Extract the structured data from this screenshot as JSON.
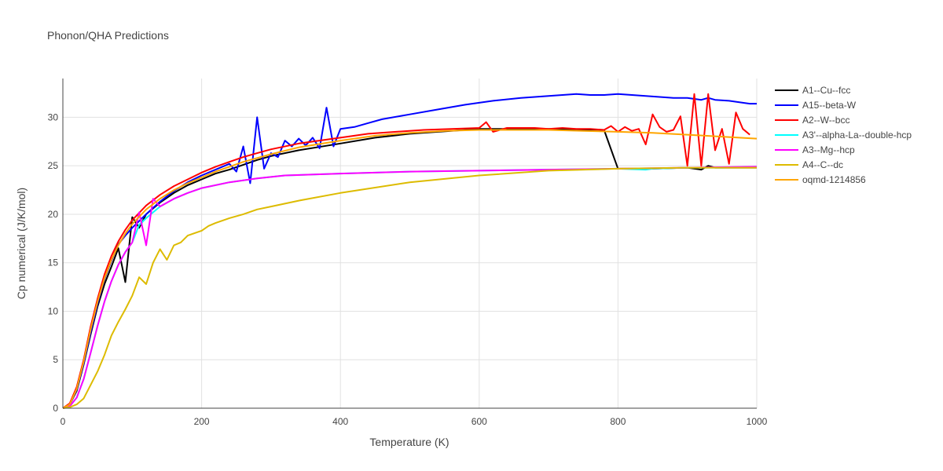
{
  "chart_data": {
    "type": "line",
    "title": "Phonon/QHA Predictions",
    "xlabel": "Temperature (K)",
    "ylabel": "Cp numerical (J/K/mol)",
    "xlim": [
      0,
      1000
    ],
    "ylim": [
      0,
      34
    ],
    "xticks": [
      0,
      200,
      400,
      600,
      800,
      1000
    ],
    "yticks": [
      0,
      5,
      10,
      15,
      20,
      25,
      30
    ],
    "grid": true,
    "legend_position": "right",
    "series": [
      {
        "name": "A1--Cu--fcc",
        "color": "#000000",
        "points": [
          [
            0,
            0
          ],
          [
            10,
            0.4
          ],
          [
            20,
            1.8
          ],
          [
            30,
            4.5
          ],
          [
            40,
            7.6
          ],
          [
            50,
            10.5
          ],
          [
            60,
            12.8
          ],
          [
            70,
            14.6
          ],
          [
            80,
            16.5
          ],
          [
            90,
            13
          ],
          [
            100,
            19.7
          ],
          [
            110,
            18.6
          ],
          [
            120,
            20
          ],
          [
            140,
            21.2
          ],
          [
            160,
            22.2
          ],
          [
            180,
            23
          ],
          [
            200,
            23.6
          ],
          [
            220,
            24.2
          ],
          [
            240,
            24.6
          ],
          [
            260,
            25.1
          ],
          [
            280,
            25.6
          ],
          [
            300,
            26
          ],
          [
            340,
            26.6
          ],
          [
            400,
            27.3
          ],
          [
            450,
            27.9
          ],
          [
            500,
            28.3
          ],
          [
            600,
            28.8
          ],
          [
            700,
            28.8
          ],
          [
            780,
            28.7
          ],
          [
            800,
            24.7
          ],
          [
            850,
            24.7
          ],
          [
            900,
            24.8
          ],
          [
            920,
            24.6
          ],
          [
            930,
            25
          ],
          [
            940,
            24.8
          ],
          [
            1000,
            24.8
          ]
        ]
      },
      {
        "name": "A15--beta-W",
        "color": "#0000ff",
        "points": [
          [
            0,
            0
          ],
          [
            10,
            0.4
          ],
          [
            20,
            1.9
          ],
          [
            30,
            4.6
          ],
          [
            40,
            7.8
          ],
          [
            50,
            10.8
          ],
          [
            60,
            13.3
          ],
          [
            70,
            15.2
          ],
          [
            80,
            16.9
          ],
          [
            90,
            17.8
          ],
          [
            100,
            18.6
          ],
          [
            120,
            20
          ],
          [
            140,
            21.3
          ],
          [
            160,
            22.4
          ],
          [
            180,
            23.3
          ],
          [
            200,
            24
          ],
          [
            220,
            24.6
          ],
          [
            240,
            25.2
          ],
          [
            250,
            24.4
          ],
          [
            260,
            27
          ],
          [
            270,
            23.2
          ],
          [
            280,
            30
          ],
          [
            290,
            24.7
          ],
          [
            300,
            26.3
          ],
          [
            310,
            25.9
          ],
          [
            320,
            27.6
          ],
          [
            330,
            27
          ],
          [
            340,
            27.8
          ],
          [
            350,
            27.1
          ],
          [
            360,
            27.9
          ],
          [
            370,
            26.8
          ],
          [
            380,
            31
          ],
          [
            390,
            27
          ],
          [
            400,
            28.8
          ],
          [
            420,
            29
          ],
          [
            440,
            29.4
          ],
          [
            460,
            29.8
          ],
          [
            500,
            30.3
          ],
          [
            540,
            30.8
          ],
          [
            580,
            31.3
          ],
          [
            620,
            31.7
          ],
          [
            660,
            32
          ],
          [
            700,
            32.2
          ],
          [
            740,
            32.4
          ],
          [
            760,
            32.3
          ],
          [
            780,
            32.3
          ],
          [
            800,
            32.4
          ],
          [
            820,
            32.3
          ],
          [
            840,
            32.2
          ],
          [
            860,
            32.1
          ],
          [
            880,
            32
          ],
          [
            900,
            32
          ],
          [
            920,
            31.8
          ],
          [
            930,
            32
          ],
          [
            940,
            31.8
          ],
          [
            960,
            31.7
          ],
          [
            980,
            31.5
          ],
          [
            990,
            31.4
          ],
          [
            1000,
            31.4
          ]
        ]
      },
      {
        "name": "A2--W--bcc",
        "color": "#ff0000",
        "points": [
          [
            0,
            0
          ],
          [
            10,
            0.5
          ],
          [
            20,
            2.2
          ],
          [
            30,
            5
          ],
          [
            40,
            8.4
          ],
          [
            50,
            11.3
          ],
          [
            60,
            13.8
          ],
          [
            70,
            15.7
          ],
          [
            80,
            17.2
          ],
          [
            90,
            18.4
          ],
          [
            100,
            19.4
          ],
          [
            120,
            20.9
          ],
          [
            140,
            22
          ],
          [
            160,
            22.9
          ],
          [
            180,
            23.6
          ],
          [
            200,
            24.3
          ],
          [
            220,
            24.9
          ],
          [
            240,
            25.4
          ],
          [
            260,
            25.9
          ],
          [
            280,
            26.3
          ],
          [
            300,
            26.7
          ],
          [
            340,
            27.3
          ],
          [
            400,
            27.9
          ],
          [
            440,
            28.3
          ],
          [
            480,
            28.5
          ],
          [
            520,
            28.7
          ],
          [
            560,
            28.8
          ],
          [
            600,
            28.9
          ],
          [
            610,
            29.5
          ],
          [
            620,
            28.5
          ],
          [
            640,
            28.9
          ],
          [
            680,
            28.9
          ],
          [
            700,
            28.8
          ],
          [
            720,
            28.9
          ],
          [
            740,
            28.8
          ],
          [
            760,
            28.8
          ],
          [
            780,
            28.7
          ],
          [
            790,
            29.1
          ],
          [
            800,
            28.5
          ],
          [
            810,
            29
          ],
          [
            820,
            28.6
          ],
          [
            830,
            28.8
          ],
          [
            840,
            27.2
          ],
          [
            850,
            30.3
          ],
          [
            860,
            29
          ],
          [
            870,
            28.5
          ],
          [
            880,
            28.7
          ],
          [
            890,
            30.1
          ],
          [
            900,
            25
          ],
          [
            910,
            32.4
          ],
          [
            920,
            25
          ],
          [
            930,
            32.4
          ],
          [
            940,
            26.6
          ],
          [
            950,
            28.8
          ],
          [
            960,
            25.2
          ],
          [
            970,
            30.5
          ],
          [
            980,
            28.8
          ],
          [
            990,
            28.2
          ]
        ]
      },
      {
        "name": "A3'--alpha-La--double-hcp",
        "color": "#00ffff",
        "points": [
          [
            0,
            0
          ],
          [
            10,
            0.2
          ],
          [
            20,
            1.1
          ],
          [
            30,
            3
          ],
          [
            40,
            5.7
          ],
          [
            50,
            8.5
          ],
          [
            60,
            11
          ],
          [
            70,
            13.1
          ],
          [
            80,
            14.8
          ],
          [
            90,
            16.1
          ],
          [
            100,
            17.1
          ],
          [
            110,
            18.9
          ],
          [
            120,
            19.6
          ],
          [
            140,
            20.8
          ],
          [
            160,
            21.6
          ],
          [
            180,
            22.2
          ],
          [
            200,
            22.7
          ],
          [
            240,
            23.3
          ],
          [
            280,
            23.7
          ],
          [
            320,
            24
          ],
          [
            400,
            24.2
          ],
          [
            500,
            24.4
          ],
          [
            600,
            24.5
          ],
          [
            700,
            24.6
          ],
          [
            800,
            24.7
          ],
          [
            840,
            24.6
          ],
          [
            850,
            24.7
          ],
          [
            900,
            24.8
          ],
          [
            950,
            24.8
          ],
          [
            1000,
            24.9
          ]
        ]
      },
      {
        "name": "A3--Mg--hcp",
        "color": "#ff00ff",
        "points": [
          [
            0,
            0
          ],
          [
            10,
            0.2
          ],
          [
            20,
            1.1
          ],
          [
            30,
            3
          ],
          [
            40,
            5.7
          ],
          [
            50,
            8.5
          ],
          [
            60,
            11
          ],
          [
            70,
            13.1
          ],
          [
            80,
            14.8
          ],
          [
            90,
            16.1
          ],
          [
            100,
            17.1
          ],
          [
            110,
            20.2
          ],
          [
            120,
            16.8
          ],
          [
            130,
            21.6
          ],
          [
            140,
            20.8
          ],
          [
            160,
            21.6
          ],
          [
            180,
            22.2
          ],
          [
            200,
            22.7
          ],
          [
            240,
            23.3
          ],
          [
            280,
            23.7
          ],
          [
            320,
            24
          ],
          [
            400,
            24.2
          ],
          [
            500,
            24.4
          ],
          [
            600,
            24.5
          ],
          [
            700,
            24.6
          ],
          [
            800,
            24.7
          ],
          [
            900,
            24.8
          ],
          [
            1000,
            24.9
          ]
        ]
      },
      {
        "name": "A4--C--dc",
        "color": "#ddbb00",
        "points": [
          [
            0,
            0
          ],
          [
            10,
            0.1
          ],
          [
            20,
            0.4
          ],
          [
            30,
            1
          ],
          [
            40,
            2.4
          ],
          [
            50,
            3.8
          ],
          [
            60,
            5.5
          ],
          [
            70,
            7.5
          ],
          [
            80,
            8.9
          ],
          [
            90,
            10.2
          ],
          [
            100,
            11.6
          ],
          [
            110,
            13.5
          ],
          [
            120,
            12.8
          ],
          [
            130,
            15
          ],
          [
            140,
            16.4
          ],
          [
            150,
            15.3
          ],
          [
            160,
            16.8
          ],
          [
            170,
            17.1
          ],
          [
            180,
            17.8
          ],
          [
            200,
            18.3
          ],
          [
            210,
            18.8
          ],
          [
            220,
            19.1
          ],
          [
            240,
            19.6
          ],
          [
            260,
            20
          ],
          [
            280,
            20.5
          ],
          [
            300,
            20.8
          ],
          [
            340,
            21.4
          ],
          [
            400,
            22.2
          ],
          [
            500,
            23.3
          ],
          [
            600,
            24
          ],
          [
            700,
            24.5
          ],
          [
            800,
            24.7
          ],
          [
            900,
            24.8
          ],
          [
            1000,
            24.8
          ]
        ]
      },
      {
        "name": "oqmd-1214856",
        "color": "#ffa500",
        "points": [
          [
            0,
            0
          ],
          [
            10,
            0.4
          ],
          [
            20,
            2
          ],
          [
            30,
            4.8
          ],
          [
            40,
            8.1
          ],
          [
            50,
            11
          ],
          [
            60,
            13.4
          ],
          [
            70,
            15.3
          ],
          [
            80,
            16.8
          ],
          [
            90,
            18
          ],
          [
            100,
            19
          ],
          [
            120,
            20.5
          ],
          [
            140,
            21.6
          ],
          [
            160,
            22.5
          ],
          [
            180,
            23.2
          ],
          [
            200,
            23.8
          ],
          [
            220,
            24.4
          ],
          [
            240,
            24.9
          ],
          [
            260,
            25.4
          ],
          [
            280,
            25.8
          ],
          [
            300,
            26.2
          ],
          [
            340,
            26.9
          ],
          [
            400,
            27.6
          ],
          [
            450,
            28.1
          ],
          [
            500,
            28.4
          ],
          [
            550,
            28.6
          ],
          [
            600,
            28.7
          ],
          [
            650,
            28.7
          ],
          [
            700,
            28.7
          ],
          [
            750,
            28.6
          ],
          [
            800,
            28.5
          ],
          [
            850,
            28.4
          ],
          [
            900,
            28.2
          ],
          [
            950,
            28
          ],
          [
            1000,
            27.8
          ]
        ]
      }
    ]
  }
}
